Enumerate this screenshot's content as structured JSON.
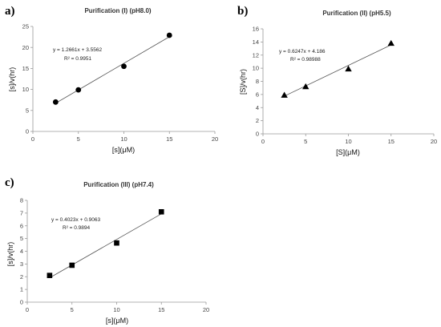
{
  "chart_data": [
    {
      "panel": "a)",
      "type": "scatter",
      "title": "Purification (I) (pH8.0)",
      "xlabel": "[s](μM)",
      "ylabel": "[s]/v(hr)",
      "xlim": [
        0,
        20
      ],
      "ylim": [
        0,
        25
      ],
      "xticks": [
        0,
        5,
        10,
        15,
        20
      ],
      "yticks": [
        0,
        5,
        10,
        15,
        20,
        25
      ],
      "marker": "circle",
      "x": [
        2.5,
        5,
        10,
        15
      ],
      "y": [
        7.0,
        9.9,
        15.5,
        22.9
      ],
      "trendline": {
        "slope": 1.2661,
        "intercept": 3.5562,
        "x_range": [
          2.5,
          15
        ]
      },
      "equation": "y = 1.2661x + 3.5562",
      "r2": "R² = 0.9951"
    },
    {
      "panel": "b)",
      "type": "scatter",
      "title": "Purification (II) (pH5.5)",
      "xlabel": "[S](μM)",
      "ylabel": "[S]/v(hr)",
      "xlim": [
        0,
        20
      ],
      "ylim": [
        0,
        16
      ],
      "xticks": [
        0,
        5,
        10,
        15,
        20
      ],
      "yticks": [
        0,
        2,
        4,
        6,
        8,
        10,
        12,
        14,
        16
      ],
      "marker": "triangle",
      "x": [
        2.5,
        5,
        10,
        15
      ],
      "y": [
        5.9,
        7.2,
        9.9,
        13.8
      ],
      "trendline": {
        "slope": 0.6247,
        "intercept": 4.186,
        "x_range": [
          2.5,
          15
        ]
      },
      "equation": "y = 0.6247x + 4.186",
      "r2": "R² = 0.98988"
    },
    {
      "panel": "c)",
      "type": "scatter",
      "title": "Purification (III) (pH7.4)",
      "xlabel": "[s](μM)",
      "ylabel": "[s]/v(hr)",
      "xlim": [
        0,
        20
      ],
      "ylim": [
        0,
        8
      ],
      "xticks": [
        0,
        5,
        10,
        15,
        20
      ],
      "yticks": [
        0,
        1,
        2,
        3,
        4,
        5,
        6,
        7,
        8
      ],
      "marker": "square",
      "x": [
        2.5,
        5,
        10,
        15
      ],
      "y": [
        2.1,
        2.9,
        4.65,
        7.1
      ],
      "trendline": {
        "slope": 0.4023,
        "intercept": 0.9063,
        "x_range": [
          2.5,
          15
        ]
      },
      "equation": "y = 0.4023x + 0.9063",
      "r2": "R² = 0.9894"
    }
  ]
}
